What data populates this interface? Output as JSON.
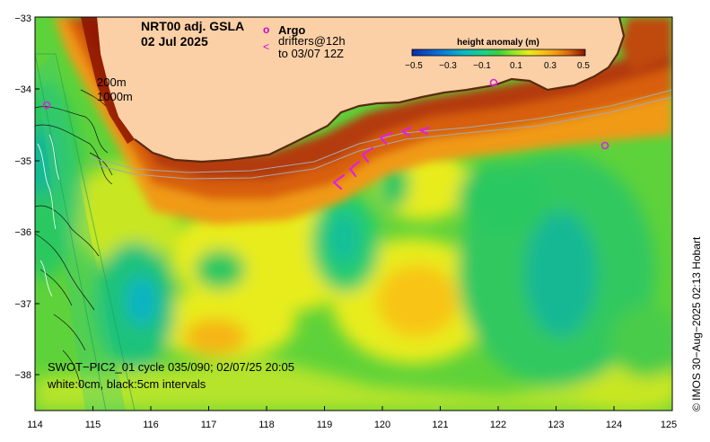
{
  "title": {
    "line1": "NRT00 adj. GSLA",
    "line2": "02 Jul 2025"
  },
  "legend": {
    "argo_symbol": "o",
    "argo_label": "Argo",
    "drifter_symbol": "<",
    "drifter_label1": "drifters@12h",
    "drifter_label2": "to 03/07 12Z"
  },
  "isobaths": {
    "label1": "200m",
    "label2": "1000m"
  },
  "colorbar": {
    "title": "height anomaly (m)",
    "ticks": [
      "−0.5",
      "−0.3",
      "−0.1",
      "0.1",
      "0.3",
      "0.5"
    ],
    "colors": [
      "#0c2aa8",
      "#0a6fd6",
      "#0cb8c4",
      "#1ed282",
      "#3ccf3c",
      "#8ee22a",
      "#e6ec1a",
      "#f8c418",
      "#f09a14",
      "#dc6a0e",
      "#b83c08",
      "#8c1400"
    ]
  },
  "axes": {
    "x_ticks": [
      "114",
      "115",
      "116",
      "117",
      "118",
      "119",
      "120",
      "121",
      "122",
      "123",
      "124",
      "125"
    ],
    "y_ticks": [
      "−33",
      "−34",
      "−35",
      "−36",
      "−37",
      "−38"
    ]
  },
  "annotation": {
    "line1": "SWOT−PIC2_01 cycle 035/090; 02/07/25 20:05",
    "line2": "white:0cm, black:5cm intervals"
  },
  "credit": "© IMOS 30−Aug−2025 02:13 Hobart",
  "colors": {
    "land": "#fcd0a6",
    "ocean_base": "#5ed23a",
    "argo": "#e020e0",
    "drifter": "#e020e0"
  }
}
